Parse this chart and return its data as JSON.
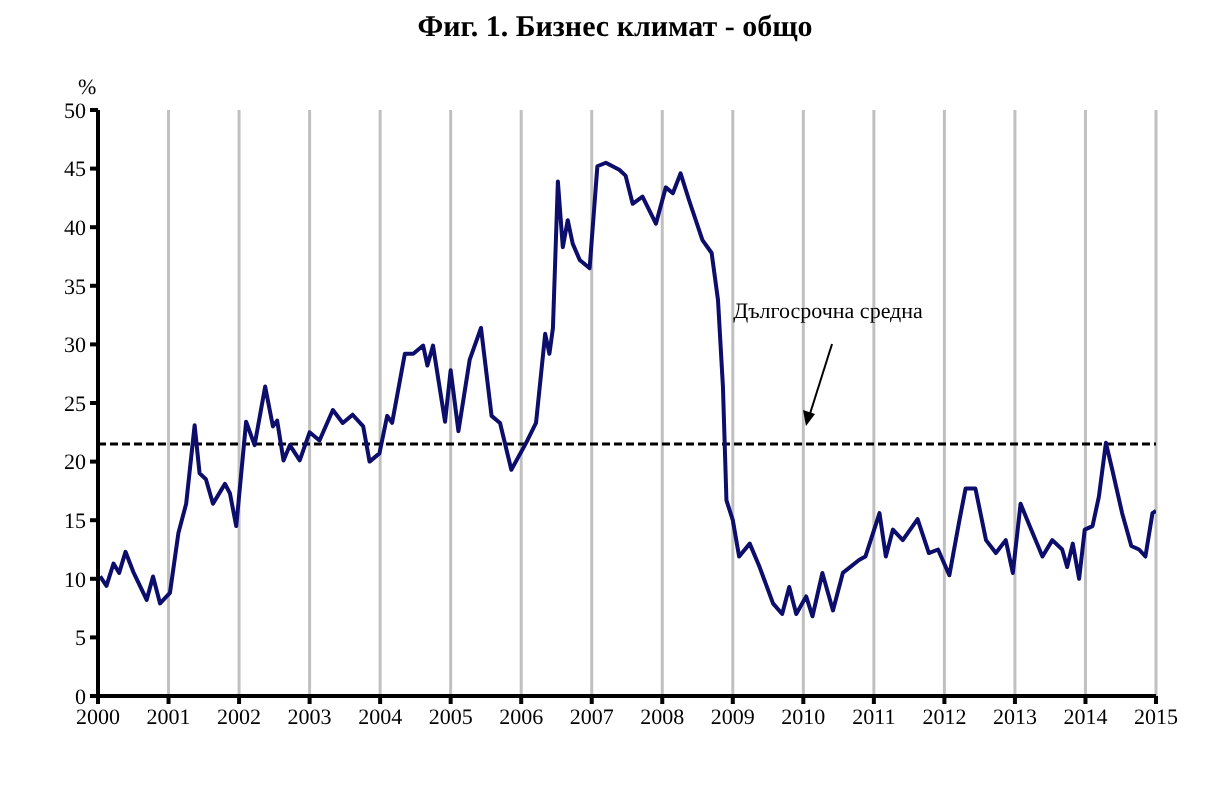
{
  "chart_data": {
    "type": "line",
    "title": "Фиг. 1. Бизнес климат - общо",
    "ylabel": "%",
    "xlim": [
      2000,
      2015
    ],
    "xticks": [
      2000,
      2001,
      2002,
      2003,
      2004,
      2005,
      2006,
      2007,
      2008,
      2009,
      2010,
      2011,
      2012,
      2013,
      2014,
      2015
    ],
    "ylim": [
      0,
      50
    ],
    "yticks": [
      0,
      5,
      10,
      15,
      20,
      25,
      30,
      35,
      40,
      45,
      50
    ],
    "grid": "x",
    "marker": "none",
    "line_style": "solid",
    "ref_lines": [
      {
        "axis": "y",
        "value": 21.5,
        "label": "Дългосрочна средна",
        "color": "#000000",
        "line_style": "dashed"
      }
    ],
    "series": [
      {
        "color": "#0d0d6b",
        "x": [
          2000.03,
          2000.12,
          2000.22,
          2000.3,
          2000.39,
          2000.5,
          2000.69,
          2000.78,
          2000.88,
          2001.02,
          2001.14,
          2001.25,
          2001.37,
          2001.44,
          2001.53,
          2001.63,
          2001.8,
          2001.87,
          2001.96,
          2002.1,
          2002.22,
          2002.37,
          2002.48,
          2002.54,
          2002.63,
          2002.72,
          2002.86,
          2003.0,
          2003.14,
          2003.33,
          2003.47,
          2003.61,
          2003.76,
          2003.85,
          2003.99,
          2004.1,
          2004.17,
          2004.35,
          2004.47,
          2004.61,
          2004.67,
          2004.75,
          2004.92,
          2005.0,
          2005.11,
          2005.27,
          2005.43,
          2005.58,
          2005.7,
          2005.86,
          2006.07,
          2006.21,
          2006.34,
          2006.4,
          2006.45,
          2006.52,
          2006.59,
          2006.66,
          2006.73,
          2006.83,
          2006.97,
          2007.08,
          2007.2,
          2007.39,
          2007.48,
          2007.58,
          2007.72,
          2007.91,
          2008.05,
          2008.15,
          2008.26,
          2008.38,
          2008.57,
          2008.7,
          2008.79,
          2008.86,
          2008.91,
          2009.0,
          2009.09,
          2009.24,
          2009.38,
          2009.57,
          2009.7,
          2009.8,
          2009.9,
          2010.04,
          2010.13,
          2010.27,
          2010.42,
          2010.56,
          2010.79,
          2010.88,
          2011.08,
          2011.17,
          2011.27,
          2011.41,
          2011.62,
          2011.78,
          2011.91,
          2012.07,
          2012.21,
          2012.3,
          2012.44,
          2012.59,
          2012.73,
          2012.87,
          2012.97,
          2013.08,
          2013.23,
          2013.39,
          2013.53,
          2013.67,
          2013.74,
          2013.82,
          2013.91,
          2013.99,
          2014.1,
          2014.19,
          2014.29,
          2014.38,
          2014.52,
          2014.65,
          2014.76,
          2014.85,
          2014.95,
          2015.0
        ],
        "values": [
          10.2,
          9.4,
          11.3,
          10.5,
          12.3,
          10.6,
          8.2,
          10.2,
          7.9,
          8.8,
          13.9,
          16.4,
          23.1,
          19.0,
          18.5,
          16.4,
          18.1,
          17.3,
          14.5,
          23.4,
          21.4,
          26.4,
          23.0,
          23.5,
          20.1,
          21.4,
          20.1,
          22.5,
          21.8,
          24.4,
          23.3,
          24.0,
          23.0,
          20.0,
          20.7,
          23.9,
          23.3,
          29.2,
          29.2,
          29.9,
          28.2,
          29.9,
          23.4,
          27.8,
          22.6,
          28.7,
          31.4,
          23.9,
          23.3,
          19.3,
          21.6,
          23.3,
          30.9,
          29.2,
          31.4,
          43.9,
          38.3,
          40.6,
          38.6,
          37.2,
          36.5,
          45.2,
          45.5,
          44.9,
          44.4,
          42.0,
          42.6,
          40.3,
          43.4,
          42.9,
          44.6,
          42.3,
          38.9,
          37.8,
          33.8,
          26.4,
          16.7,
          15.0,
          11.9,
          13.0,
          11.0,
          7.9,
          7.0,
          9.3,
          7.0,
          8.5,
          6.8,
          10.5,
          7.3,
          10.5,
          11.6,
          11.9,
          15.6,
          11.9,
          14.2,
          13.3,
          15.1,
          12.2,
          12.5,
          10.3,
          14.9,
          17.7,
          17.7,
          13.3,
          12.2,
          13.3,
          10.5,
          16.4,
          14.2,
          11.9,
          13.3,
          12.5,
          11.0,
          13.0,
          10.0,
          14.2,
          14.5,
          17.0,
          21.6,
          19.3,
          15.6,
          12.8,
          12.5,
          11.9,
          15.6,
          15.8
        ]
      }
    ]
  }
}
